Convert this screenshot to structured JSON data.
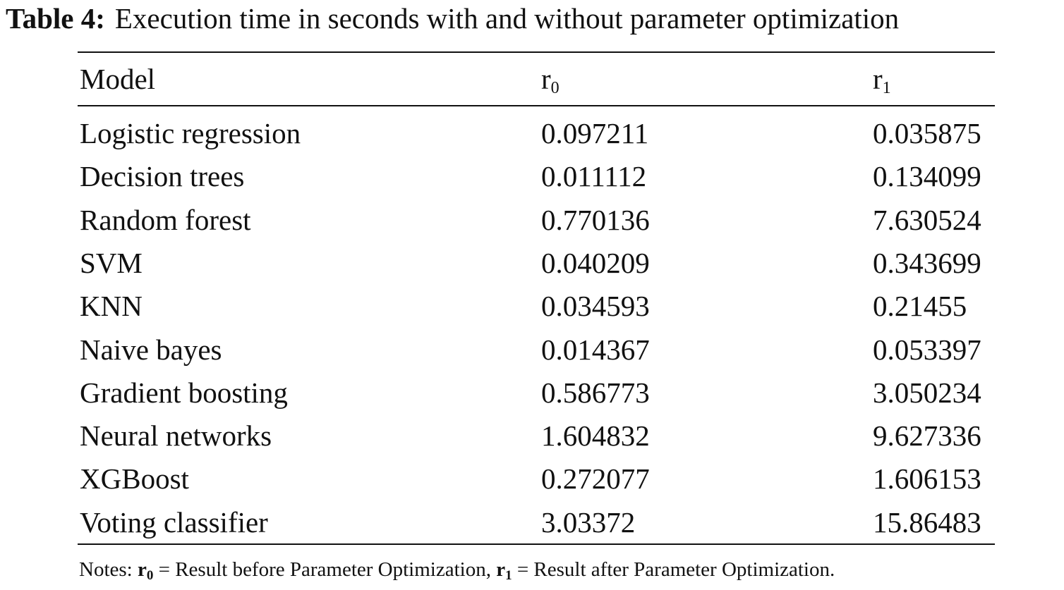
{
  "caption": {
    "label": "Table 4:",
    "text": "Execution time in seconds with and without parameter optimization"
  },
  "table": {
    "headers": [
      {
        "base": "Model",
        "sub": ""
      },
      {
        "base": "r",
        "sub": "0"
      },
      {
        "base": "r",
        "sub": "1"
      }
    ],
    "rows": [
      [
        "Logistic regression",
        "0.097211",
        "0.035875"
      ],
      [
        "Decision trees",
        "0.011112",
        "0.134099"
      ],
      [
        "Random forest",
        "0.770136",
        "7.630524"
      ],
      [
        "SVM",
        "0.040209",
        "0.343699"
      ],
      [
        "KNN",
        "0.034593",
        "0.21455"
      ],
      [
        "Naive bayes",
        "0.014367",
        "0.053397"
      ],
      [
        "Gradient boosting",
        "0.586773",
        "3.050234"
      ],
      [
        "Neural networks",
        "1.604832",
        "9.627336"
      ],
      [
        "XGBoost",
        "0.272077",
        "1.606153"
      ],
      [
        "Voting classifier",
        "3.03372",
        "15.86483"
      ]
    ]
  },
  "notes": {
    "prefix": "Notes: ",
    "sym0_base": "r",
    "sym0_sub": "0",
    "def0": " = Result before Parameter Optimization, ",
    "sym1_base": "r",
    "sym1_sub": "1",
    "def1": " = Result after Parameter Optimization."
  }
}
